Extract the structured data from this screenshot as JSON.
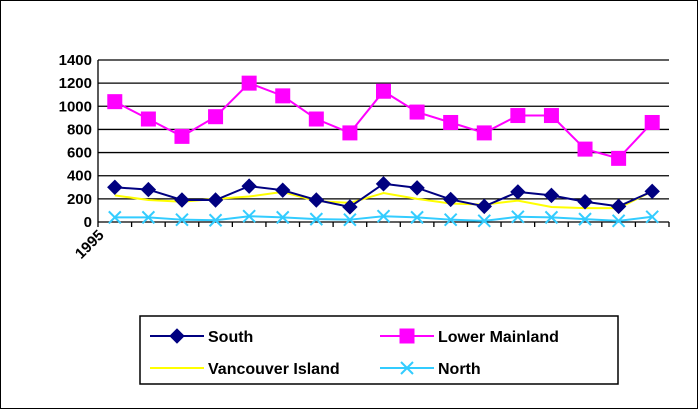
{
  "chart_data": {
    "type": "line",
    "title": "",
    "xlabel": "",
    "ylabel": "",
    "ylim": [
      0,
      1400
    ],
    "y_ticks": [
      "0",
      "200",
      "400",
      "600",
      "800",
      "1000",
      "1200",
      "1400"
    ],
    "x_tick_labels": [
      "1995"
    ],
    "grid": "horizontal",
    "legend_position": "bottom",
    "series": [
      {
        "name": "South",
        "color": "#000080",
        "marker": "diamond",
        "values": [
          300,
          280,
          190,
          190,
          310,
          275,
          190,
          130,
          330,
          295,
          195,
          135,
          260,
          230,
          175,
          135,
          265
        ]
      },
      {
        "name": "Lower Mainland",
        "color": "#FF00FF",
        "marker": "square",
        "values": [
          1040,
          890,
          740,
          910,
          1200,
          1090,
          890,
          770,
          1130,
          950,
          860,
          770,
          920,
          920,
          630,
          550,
          860
        ]
      },
      {
        "name": "Vancouver Island",
        "color": "#FFFF00",
        "marker": "none",
        "values": [
          230,
          190,
          175,
          200,
          220,
          260,
          180,
          165,
          250,
          200,
          160,
          150,
          185,
          130,
          120,
          120,
          265
        ]
      },
      {
        "name": "North",
        "color": "#33CCFF",
        "marker": "x",
        "values": [
          40,
          40,
          20,
          15,
          50,
          40,
          25,
          20,
          50,
          40,
          20,
          10,
          45,
          40,
          25,
          10,
          45
        ]
      }
    ]
  }
}
